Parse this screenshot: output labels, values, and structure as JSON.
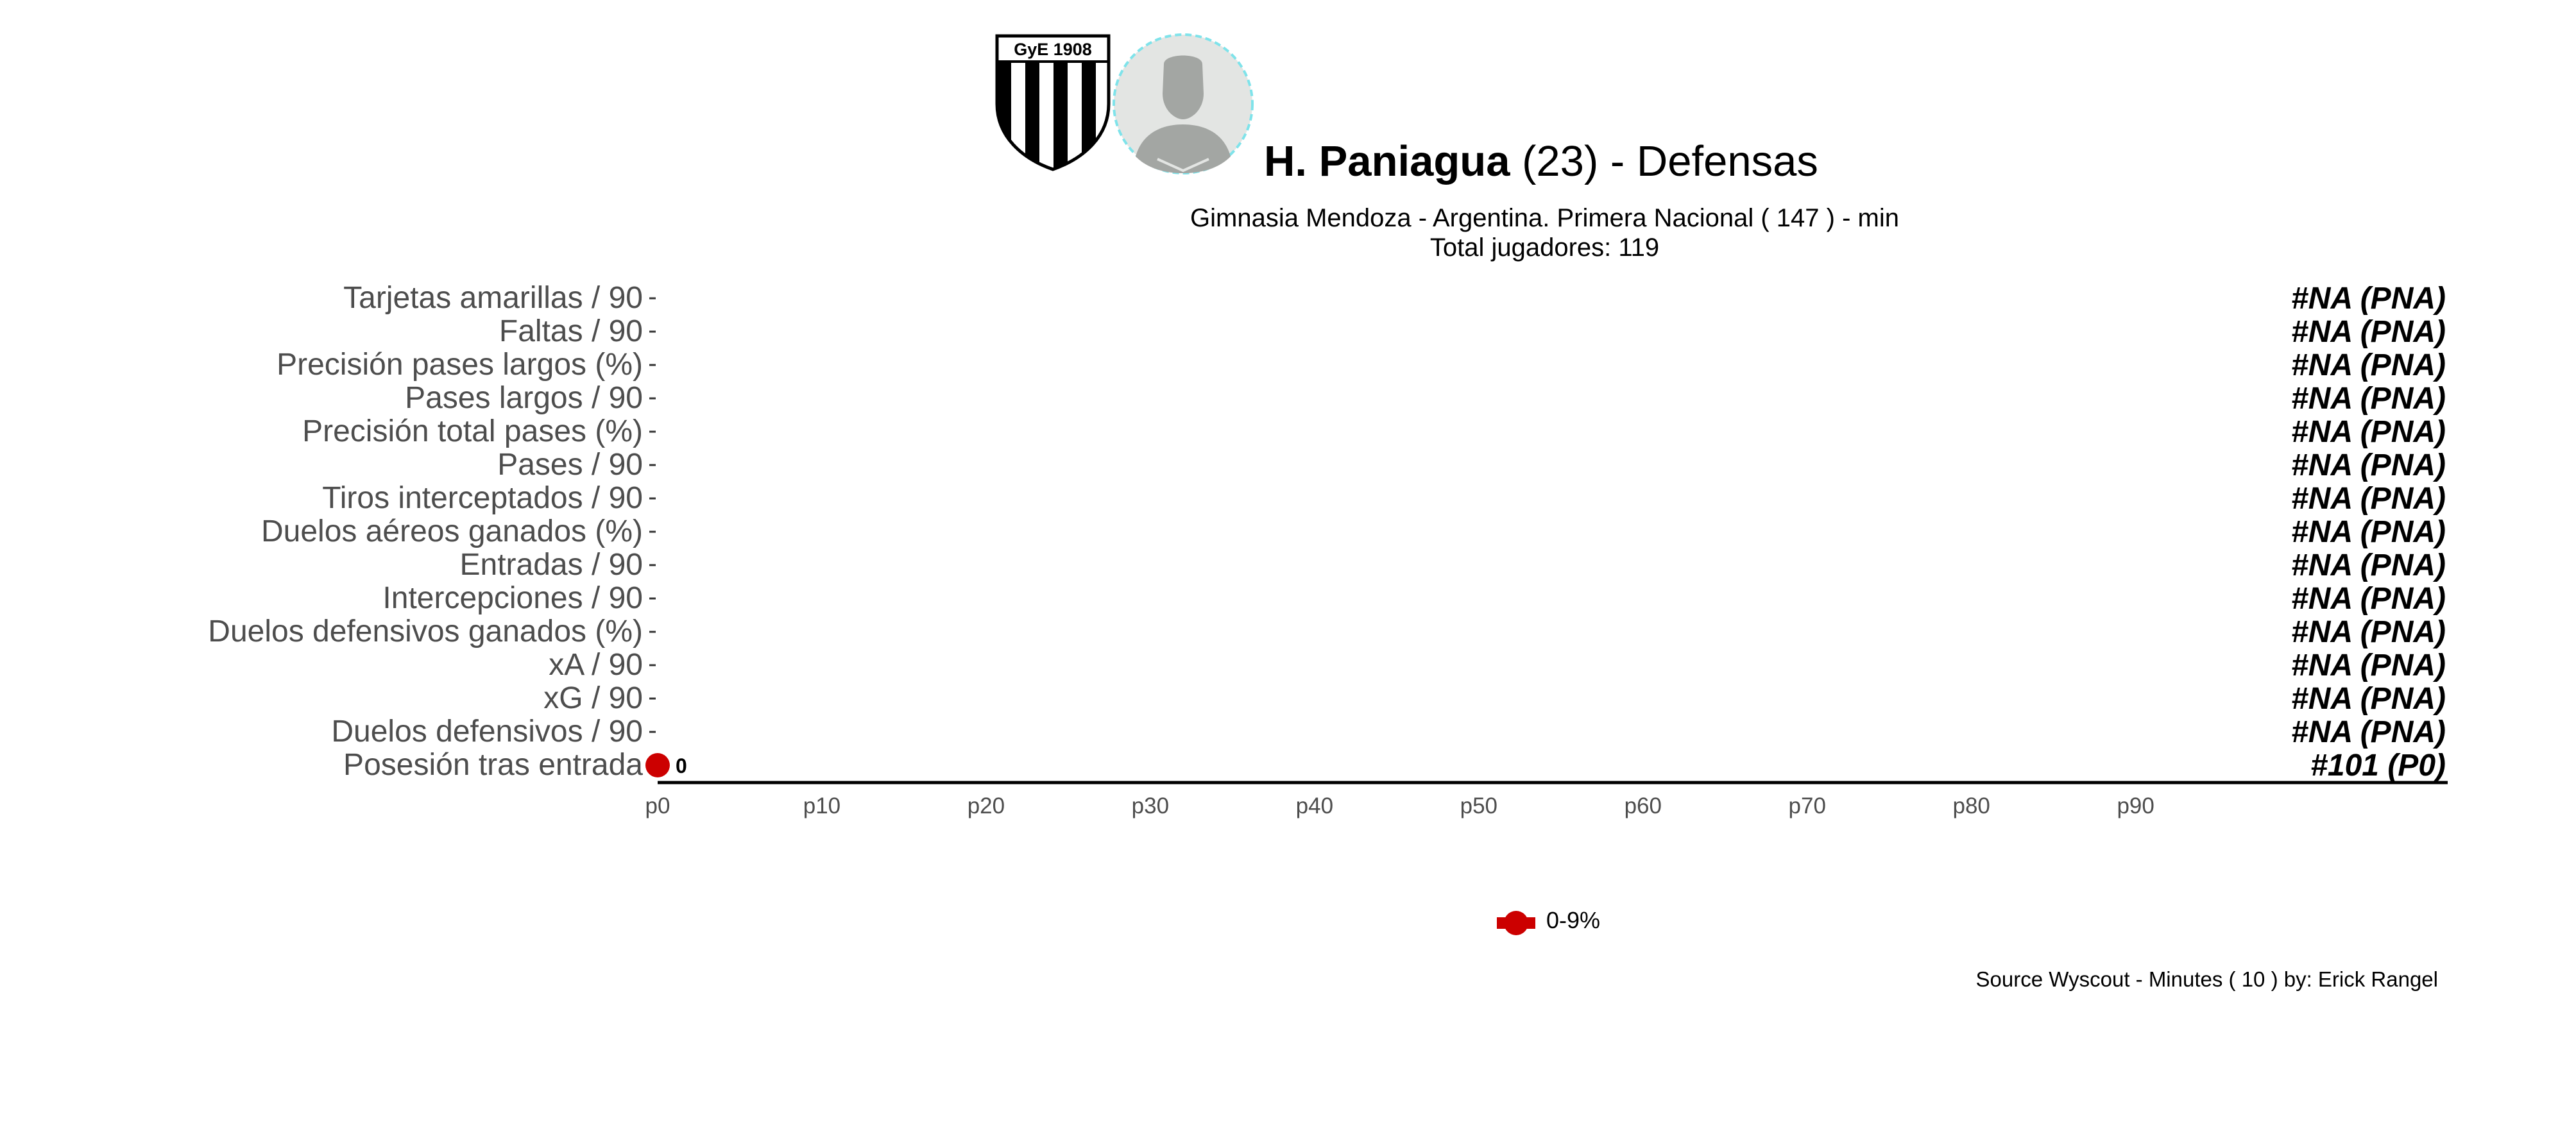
{
  "header": {
    "player_name": "H. Paniagua",
    "player_age": "(23) -",
    "position": "Defensas",
    "subtitle": "Gimnasia Mendoza  -  Argentina. Primera Nacional  ( 147 ) - min",
    "total_players": "Total jugadores:  119",
    "crest_text": "GyE  1908"
  },
  "caption": "Source Wyscout - Minutes ( 10 ) by: Erick Rangel",
  "chart_data": {
    "type": "scatter",
    "orientation": "horizontal",
    "title": "H. Paniagua (23) -  Defensas",
    "xlabel": "",
    "ylabel": "",
    "x_ticks": [
      "p0",
      "p10",
      "p20",
      "p30",
      "p40",
      "p50",
      "p60",
      "p70",
      "p80",
      "p90"
    ],
    "xlim": [
      0,
      109
    ],
    "grid": false,
    "legend_position": "bottom",
    "legend": [
      {
        "label": "0-9%",
        "color": "#cc0000"
      }
    ],
    "categories": [
      "Tarjetas amarillas / 90",
      "Faltas / 90",
      "Precisión pases largos (%)",
      "Pases largos / 90",
      "Precisión total pases (%)",
      "Pases / 90",
      "Tiros interceptados / 90",
      "Duelos aéreos ganados (%)",
      "Entradas / 90",
      "Intercepciones / 90",
      "Duelos defensivos ganados (%)",
      "xA / 90",
      "xG / 90",
      "Duelos defensivos / 90",
      "Posesión tras entrada"
    ],
    "percentiles": [
      null,
      null,
      null,
      null,
      null,
      null,
      null,
      null,
      null,
      null,
      null,
      null,
      null,
      null,
      0
    ],
    "point_labels": [
      "",
      "",
      "",
      "",
      "",
      "",
      "",
      "",
      "",
      "",
      "",
      "",
      "",
      "",
      "0"
    ],
    "rank_labels": [
      "#NA (PNA)",
      "#NA (PNA)",
      "#NA (PNA)",
      "#NA (PNA)",
      "#NA (PNA)",
      "#NA (PNA)",
      "#NA (PNA)",
      "#NA (PNA)",
      "#NA (PNA)",
      "#NA (PNA)",
      "#NA (PNA)",
      "#NA (PNA)",
      "#NA (PNA)",
      "#NA (PNA)",
      "#101 (P0)"
    ],
    "point_color": "#cc0000"
  }
}
